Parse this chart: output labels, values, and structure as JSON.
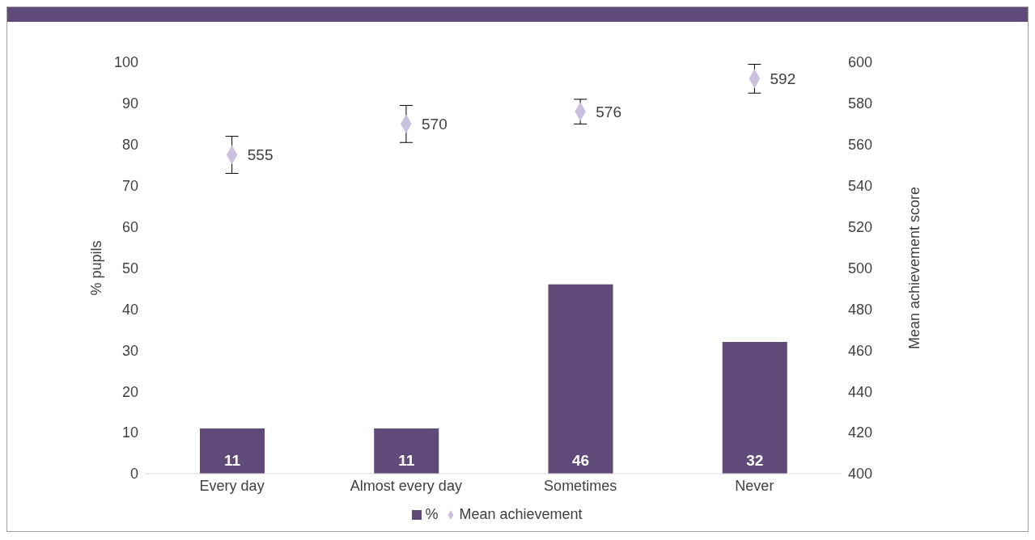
{
  "chart_data": {
    "type": "bar",
    "categories": [
      "Every day",
      "Almost every day",
      "Sometimes",
      "Never"
    ],
    "series": [
      {
        "name": "%",
        "color": "#5f4a7a",
        "values": [
          11,
          11,
          46,
          32
        ]
      },
      {
        "name": "Mean achievement",
        "type": "scatter",
        "axis": "y2",
        "color": "#c9c1dd",
        "values": [
          555,
          570,
          576,
          592
        ],
        "errors": [
          9,
          9,
          6,
          7
        ]
      }
    ],
    "ylabel": "% pupils",
    "y2label": "Mean achievement score",
    "ylim": [
      0,
      100
    ],
    "yticks": [
      0,
      10,
      20,
      30,
      40,
      50,
      60,
      70,
      80,
      90,
      100
    ],
    "y2lim": [
      400,
      600
    ],
    "y2ticks": [
      400,
      420,
      440,
      460,
      480,
      500,
      520,
      540,
      560,
      580,
      600
    ],
    "data_labels": true,
    "legend": "bottom",
    "marker": "diamond"
  }
}
